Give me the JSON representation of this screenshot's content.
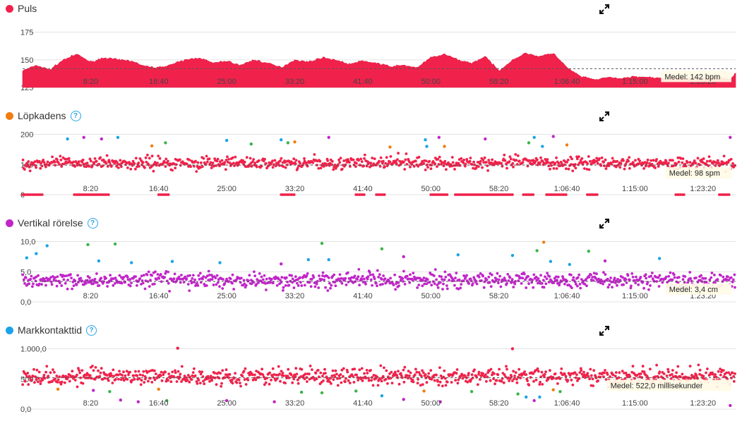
{
  "chart_data": [
    {
      "type": "area",
      "title": "Puls",
      "color": "#f0224b",
      "ylim": [
        125,
        185
      ],
      "yticks": [
        "175",
        "150",
        "125"
      ],
      "ytick_values": [
        175,
        150,
        125
      ],
      "xticks": [
        "8:20",
        "16:40",
        "25:00",
        "33:20",
        "41:40",
        "50:00",
        "58:20",
        "1:06:40",
        "1:15:00",
        "1:23:20"
      ],
      "xtick_values": [
        500,
        1000,
        1500,
        2000,
        2500,
        3000,
        3500,
        4000,
        4500,
        5000
      ],
      "xlim": [
        0,
        5240
      ],
      "average": 142,
      "average_label": "Medel: 142 bpm",
      "x": [
        0,
        100,
        200,
        300,
        400,
        500,
        600,
        700,
        800,
        900,
        1000,
        1100,
        1200,
        1300,
        1400,
        1500,
        1600,
        1700,
        1800,
        1900,
        2000,
        2100,
        2200,
        2300,
        2400,
        2500,
        2600,
        2700,
        2800,
        2900,
        3000,
        3100,
        3200,
        3300,
        3400,
        3500,
        3600,
        3700,
        3800,
        3900,
        4000,
        4100,
        4200,
        4300,
        4400,
        4500,
        4600,
        4700,
        4800,
        4900,
        5000,
        5100,
        5200,
        5240
      ],
      "values": [
        140,
        145,
        141,
        150,
        155,
        148,
        152,
        150,
        149,
        144,
        143,
        146,
        150,
        152,
        147,
        149,
        145,
        150,
        147,
        143,
        150,
        148,
        152,
        150,
        146,
        149,
        147,
        144,
        145,
        143,
        152,
        155,
        150,
        147,
        153,
        140,
        150,
        156,
        153,
        156,
        143,
        135,
        132,
        134,
        133,
        135,
        134,
        133,
        134,
        133,
        134,
        135,
        132,
        138
      ]
    },
    {
      "type": "scatter",
      "title": "Löpkadens",
      "color": "#f07d10",
      "ylim": [
        0,
        220
      ],
      "yticks": [
        "200",
        "100",
        "0"
      ],
      "ytick_values": [
        200,
        100,
        0
      ],
      "xticks": [
        "8:20",
        "16:40",
        "25:00",
        "33:20",
        "41:40",
        "50:00",
        "58:20",
        "1:06:40",
        "1:15:00",
        "1:23:20"
      ],
      "xtick_values": [
        500,
        1000,
        1500,
        2000,
        2500,
        3000,
        3500,
        4000,
        4500,
        5000
      ],
      "xlim": [
        0,
        5240
      ],
      "average": 98,
      "average_label": "Medel: 98 spm",
      "band_center": 105,
      "band_spread": 22,
      "zero_segments": [
        [
          0,
          150
        ],
        [
          380,
          640
        ],
        [
          1000,
          1080
        ],
        [
          1900,
          2000
        ],
        [
          2450,
          2520
        ],
        [
          2600,
          2660
        ],
        [
          3000,
          3120
        ],
        [
          3180,
          3600
        ],
        [
          3680,
          3760
        ],
        [
          3850,
          4000
        ],
        [
          4150,
          4230
        ],
        [
          4800,
          4860
        ],
        [
          5120,
          5200
        ]
      ],
      "outliers": [
        {
          "x": 330,
          "y": 185,
          "color": "#1aa3e8"
        },
        {
          "x": 450,
          "y": 190,
          "color": "#c026c8"
        },
        {
          "x": 580,
          "y": 185,
          "color": "#c026c8"
        },
        {
          "x": 700,
          "y": 190,
          "color": "#1aa3e8"
        },
        {
          "x": 950,
          "y": 162,
          "color": "#f07d10"
        },
        {
          "x": 1050,
          "y": 172,
          "color": "#3cb34a"
        },
        {
          "x": 1500,
          "y": 180,
          "color": "#1aa3e8"
        },
        {
          "x": 1680,
          "y": 168,
          "color": "#3cb34a"
        },
        {
          "x": 1900,
          "y": 182,
          "color": "#1aa3e8"
        },
        {
          "x": 1950,
          "y": 172,
          "color": "#3cb34a"
        },
        {
          "x": 2000,
          "y": 175,
          "color": "#f07d10"
        },
        {
          "x": 2250,
          "y": 190,
          "color": "#c026c8"
        },
        {
          "x": 2700,
          "y": 158,
          "color": "#f07d10"
        },
        {
          "x": 2960,
          "y": 182,
          "color": "#1aa3e8"
        },
        {
          "x": 3060,
          "y": 190,
          "color": "#c026c8"
        },
        {
          "x": 3100,
          "y": 160,
          "color": "#f07d10"
        },
        {
          "x": 3400,
          "y": 185,
          "color": "#c026c8"
        },
        {
          "x": 3720,
          "y": 172,
          "color": "#3cb34a"
        },
        {
          "x": 3760,
          "y": 190,
          "color": "#1aa3e8"
        },
        {
          "x": 3900,
          "y": 193,
          "color": "#c026c8"
        },
        {
          "x": 4000,
          "y": 165,
          "color": "#f07d10"
        },
        {
          "x": 3820,
          "y": 160,
          "color": "#1aa3e8"
        },
        {
          "x": 5200,
          "y": 190,
          "color": "#c026c8"
        },
        {
          "x": 2970,
          "y": 160,
          "color": "#1aa3e8"
        }
      ]
    },
    {
      "type": "scatter",
      "title": "Vertikal rörelse",
      "color": "#c026c8",
      "ylim": [
        0,
        11
      ],
      "yticks": [
        "10,0",
        "5,0",
        "0,0"
      ],
      "ytick_values": [
        10,
        5,
        0
      ],
      "xticks": [
        "8:20",
        "16:40",
        "25:00",
        "33:20",
        "41:40",
        "50:00",
        "58:20",
        "1:06:40",
        "1:15:00",
        "1:23:20"
      ],
      "xtick_values": [
        500,
        1000,
        1500,
        2000,
        2500,
        3000,
        3500,
        4000,
        4500,
        5000
      ],
      "xlim": [
        0,
        5240
      ],
      "average": 3.4,
      "average_label": "Medel: 3,4 cm",
      "band_center": 3.6,
      "band_spread": 1.4,
      "outliers": [
        {
          "x": 30,
          "y": 7.3,
          "color": "#1aa3e8"
        },
        {
          "x": 100,
          "y": 8.0,
          "color": "#1aa3e8"
        },
        {
          "x": 180,
          "y": 9.3,
          "color": "#1aa3e8"
        },
        {
          "x": 480,
          "y": 9.5,
          "color": "#3cb34a"
        },
        {
          "x": 560,
          "y": 6.8,
          "color": "#1aa3e8"
        },
        {
          "x": 680,
          "y": 9.6,
          "color": "#3cb34a"
        },
        {
          "x": 800,
          "y": 6.5,
          "color": "#1aa3e8"
        },
        {
          "x": 1100,
          "y": 6.7,
          "color": "#1aa3e8"
        },
        {
          "x": 1450,
          "y": 6.5,
          "color": "#1aa3e8"
        },
        {
          "x": 1900,
          "y": 6.3,
          "color": "#c026c8"
        },
        {
          "x": 2100,
          "y": 7.0,
          "color": "#1aa3e8"
        },
        {
          "x": 2200,
          "y": 9.7,
          "color": "#3cb34a"
        },
        {
          "x": 2250,
          "y": 7.0,
          "color": "#1aa3e8"
        },
        {
          "x": 2640,
          "y": 8.8,
          "color": "#3cb34a"
        },
        {
          "x": 2800,
          "y": 7.5,
          "color": "#c026c8"
        },
        {
          "x": 3200,
          "y": 7.8,
          "color": "#1aa3e8"
        },
        {
          "x": 3600,
          "y": 7.7,
          "color": "#1aa3e8"
        },
        {
          "x": 3780,
          "y": 8.5,
          "color": "#3cb34a"
        },
        {
          "x": 3830,
          "y": 9.9,
          "color": "#f07d10"
        },
        {
          "x": 3880,
          "y": 6.7,
          "color": "#1aa3e8"
        },
        {
          "x": 4020,
          "y": 6.2,
          "color": "#1aa3e8"
        },
        {
          "x": 4160,
          "y": 8.4,
          "color": "#3cb34a"
        },
        {
          "x": 4280,
          "y": 6.8,
          "color": "#c026c8"
        },
        {
          "x": 4680,
          "y": 7.2,
          "color": "#1aa3e8"
        }
      ]
    },
    {
      "type": "scatter",
      "title": "Markkontakttid",
      "color": "#1aa3e8",
      "ylim": [
        0,
        1100
      ],
      "yticks": [
        "1.000,0",
        "500,0",
        "0,0"
      ],
      "ytick_values": [
        1000,
        500,
        0
      ],
      "xticks": [
        "8:20",
        "16:40",
        "25:00",
        "33:20",
        "41:40",
        "50:00",
        "58:20",
        "1:06:40",
        "1:15:00",
        "1:23:20"
      ],
      "xtick_values": [
        500,
        1000,
        1500,
        2000,
        2500,
        3000,
        3500,
        4000,
        4500,
        5000
      ],
      "xlim": [
        0,
        5240
      ],
      "average": 522,
      "average_label": "Medel: 522,0 millisekunder",
      "band_center": 540,
      "band_spread": 150,
      "outliers": [
        {
          "x": 260,
          "y": 330,
          "color": "#f07d10"
        },
        {
          "x": 520,
          "y": 310,
          "color": "#c026c8"
        },
        {
          "x": 640,
          "y": 290,
          "color": "#3cb34a"
        },
        {
          "x": 720,
          "y": 150,
          "color": "#c026c8"
        },
        {
          "x": 850,
          "y": 120,
          "color": "#c026c8"
        },
        {
          "x": 1000,
          "y": 330,
          "color": "#f07d10"
        },
        {
          "x": 1060,
          "y": 140,
          "color": "#3cb34a"
        },
        {
          "x": 1140,
          "y": 1010,
          "color": "#f0224b"
        },
        {
          "x": 1500,
          "y": 140,
          "color": "#c026c8"
        },
        {
          "x": 1850,
          "y": 120,
          "color": "#c026c8"
        },
        {
          "x": 2050,
          "y": 280,
          "color": "#3cb34a"
        },
        {
          "x": 2200,
          "y": 270,
          "color": "#3cb34a"
        },
        {
          "x": 2450,
          "y": 300,
          "color": "#3cb34a"
        },
        {
          "x": 2640,
          "y": 220,
          "color": "#1aa3e8"
        },
        {
          "x": 2800,
          "y": 160,
          "color": "#c026c8"
        },
        {
          "x": 2950,
          "y": 300,
          "color": "#f07d10"
        },
        {
          "x": 3070,
          "y": 120,
          "color": "#c026c8"
        },
        {
          "x": 3300,
          "y": 290,
          "color": "#3cb34a"
        },
        {
          "x": 3640,
          "y": 250,
          "color": "#3cb34a"
        },
        {
          "x": 3700,
          "y": 200,
          "color": "#1aa3e8"
        },
        {
          "x": 3760,
          "y": 140,
          "color": "#c026c8"
        },
        {
          "x": 3800,
          "y": 200,
          "color": "#1aa3e8"
        },
        {
          "x": 3900,
          "y": 320,
          "color": "#f07d10"
        },
        {
          "x": 3950,
          "y": 290,
          "color": "#3cb34a"
        },
        {
          "x": 3600,
          "y": 1000,
          "color": "#f0224b"
        },
        {
          "x": 5200,
          "y": 60,
          "color": "#c026c8"
        }
      ]
    }
  ]
}
